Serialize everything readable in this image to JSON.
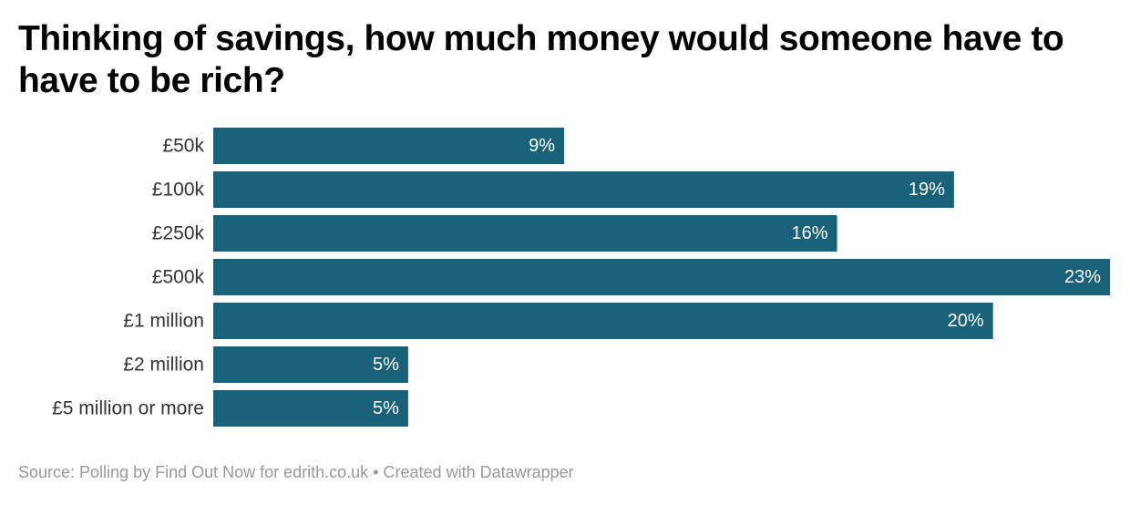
{
  "title": "Thinking of savings, how much money would someone have to have to be rich?",
  "colors": {
    "bar": "#186179",
    "value_label": "#ffffff",
    "category_label": "#333333",
    "source_text": "#999999"
  },
  "chart_data": {
    "type": "bar",
    "orientation": "horizontal",
    "title": "Thinking of savings, how much money would someone have to have to be rich?",
    "xlabel": "",
    "ylabel": "",
    "grid": false,
    "legend": "none",
    "xlim": [
      0,
      23
    ],
    "categories": [
      "£50k",
      "£100k",
      "£250k",
      "£500k",
      "£1 million",
      "£2 million",
      "£5 million or more"
    ],
    "values": [
      9,
      19,
      16,
      23,
      20,
      5,
      5
    ],
    "value_labels": [
      "9%",
      "19%",
      "16%",
      "23%",
      "20%",
      "5%",
      "5%"
    ]
  },
  "footer": {
    "source": "Source: Polling by Find Out Now for edrith.co.uk",
    "separator": "•",
    "credit": "Created with Datawrapper"
  }
}
